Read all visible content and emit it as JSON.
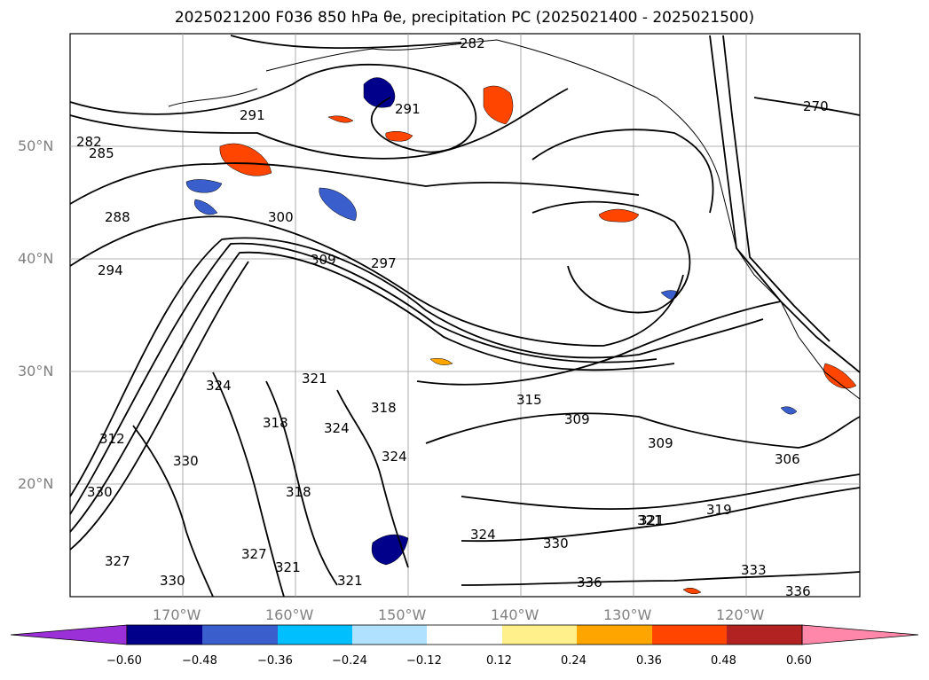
{
  "title": "2025021200 F036 850 hPa θe, precipitation PC (2025021400 - 2025021500)",
  "lat_labels": [
    "50°N",
    "40°N",
    "30°N",
    "20°N"
  ],
  "lon_labels": [
    "170°W",
    "160°W",
    "150°W",
    "140°W",
    "130°W",
    "120°W"
  ],
  "contour_labels": [
    "282",
    "291",
    "291",
    "270",
    "282",
    "285",
    "288",
    "294",
    "300",
    "309",
    "297",
    "324",
    "321",
    "318",
    "324",
    "318",
    "324",
    "312",
    "330",
    "330",
    "318",
    "327",
    "327",
    "321",
    "330",
    "321",
    "315",
    "309",
    "309",
    "306",
    "321",
    "319",
    "324",
    "330",
    "336",
    "333",
    "336",
    "321"
  ],
  "colorbar": {
    "ticks": [
      "−0.60",
      "−0.48",
      "−0.36",
      "−0.24",
      "−0.12",
      "0.12",
      "0.24",
      "0.36",
      "0.48",
      "0.60"
    ],
    "colors": [
      "#9b30d9",
      "#00008b",
      "#3a5fcd",
      "#00bfff",
      "#b0e2ff",
      "#ffffff",
      "#fff08c",
      "#ffa500",
      "#ff4500",
      "#b22222",
      "#ff88aa"
    ]
  }
}
